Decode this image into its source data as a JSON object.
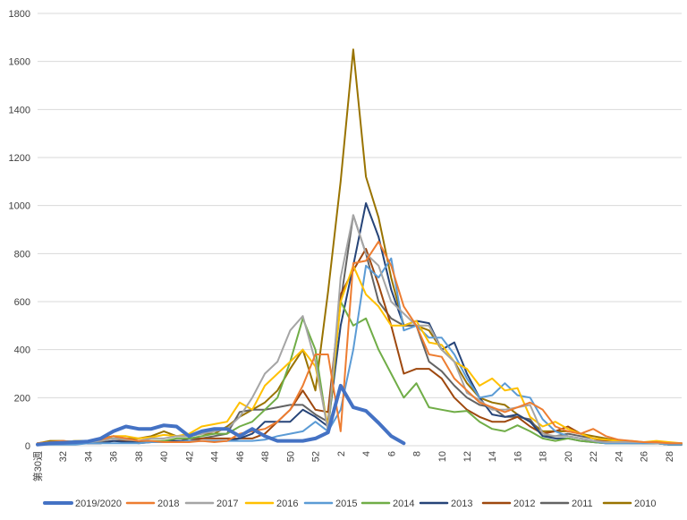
{
  "chart_data": {
    "type": "line",
    "title": "",
    "xlabel": "",
    "ylabel": "",
    "ylim": [
      0,
      1800
    ],
    "y_ticks": [
      0,
      200,
      400,
      600,
      800,
      1000,
      1200,
      1400,
      1600,
      1800
    ],
    "x_weeks": [
      30,
      31,
      32,
      33,
      34,
      35,
      36,
      37,
      38,
      39,
      40,
      41,
      42,
      43,
      44,
      45,
      46,
      47,
      48,
      49,
      50,
      51,
      52,
      1,
      2,
      3,
      4,
      5,
      6,
      7,
      8,
      9,
      10,
      11,
      12,
      13,
      14,
      15,
      16,
      17,
      18,
      19,
      20,
      21,
      22,
      23,
      24,
      25,
      26,
      27,
      28,
      29
    ],
    "x_tick_labels": [
      "第30週",
      "32",
      "34",
      "36",
      "38",
      "40",
      "42",
      "44",
      "46",
      "48",
      "50",
      "52",
      "2",
      "4",
      "6",
      "8",
      "10",
      "12",
      "14",
      "16",
      "18",
      "20",
      "22",
      "24",
      "26",
      "28"
    ],
    "grid": "horizontal",
    "legend_position": "bottom",
    "series": [
      {
        "name": "2019/2020",
        "color": "#4472C4",
        "width": 4,
        "values": [
          5,
          10,
          12,
          15,
          18,
          30,
          60,
          80,
          70,
          70,
          85,
          80,
          40,
          60,
          70,
          70,
          40,
          70,
          40,
          20,
          20,
          20,
          30,
          55,
          250,
          160,
          145,
          95,
          40,
          10
        ]
      },
      {
        "name": "2018",
        "color": "#ED7D31",
        "width": 2,
        "values": [
          10,
          15,
          20,
          15,
          20,
          25,
          40,
          30,
          20,
          20,
          15,
          15,
          15,
          20,
          15,
          20,
          50,
          60,
          70,
          100,
          150,
          250,
          380,
          380,
          60,
          760,
          770,
          850,
          750,
          580,
          500,
          380,
          370,
          280,
          230,
          180,
          160,
          140,
          160,
          180,
          150,
          80,
          60,
          50,
          70,
          40,
          25,
          20,
          15,
          15,
          10,
          10
        ]
      },
      {
        "name": "2017",
        "color": "#A5A5A5",
        "width": 2,
        "values": [
          10,
          10,
          15,
          20,
          15,
          20,
          30,
          25,
          20,
          30,
          30,
          40,
          40,
          50,
          60,
          70,
          120,
          200,
          300,
          350,
          480,
          540,
          350,
          60,
          700,
          960,
          800,
          750,
          600,
          550,
          500,
          500,
          400,
          350,
          220,
          190,
          150,
          150,
          160,
          170,
          50,
          40,
          40,
          30,
          20,
          15,
          15,
          15,
          15,
          10,
          10,
          10
        ]
      },
      {
        "name": "2016",
        "color": "#FFC000",
        "width": 2,
        "values": [
          10,
          15,
          15,
          20,
          20,
          25,
          40,
          40,
          30,
          35,
          45,
          40,
          50,
          80,
          90,
          100,
          180,
          150,
          250,
          300,
          350,
          400,
          330,
          80,
          600,
          750,
          630,
          580,
          500,
          500,
          520,
          430,
          420,
          350,
          320,
          250,
          280,
          230,
          240,
          120,
          80,
          100,
          70,
          50,
          30,
          25,
          20,
          20,
          15,
          20,
          15,
          10
        ]
      },
      {
        "name": "2015",
        "color": "#5B9BD5",
        "width": 2,
        "values": [
          5,
          5,
          5,
          5,
          10,
          10,
          10,
          10,
          10,
          15,
          15,
          15,
          20,
          20,
          20,
          20,
          20,
          20,
          25,
          40,
          50,
          60,
          100,
          60,
          150,
          400,
          750,
          700,
          780,
          480,
          500,
          450,
          450,
          380,
          280,
          200,
          210,
          260,
          210,
          200,
          110,
          60,
          40,
          30,
          20,
          10,
          10,
          10,
          10,
          10,
          5,
          5
        ]
      },
      {
        "name": "2014",
        "color": "#70AD47",
        "width": 2,
        "values": [
          10,
          15,
          15,
          20,
          20,
          25,
          30,
          30,
          20,
          20,
          20,
          30,
          30,
          40,
          50,
          50,
          80,
          100,
          150,
          200,
          350,
          530,
          400,
          60,
          600,
          500,
          530,
          400,
          300,
          200,
          260,
          160,
          150,
          140,
          145,
          100,
          70,
          60,
          85,
          60,
          30,
          20,
          30,
          20,
          15,
          10,
          10,
          10,
          10,
          10,
          5,
          5
        ]
      },
      {
        "name": "2013",
        "color": "#264478",
        "width": 2,
        "values": [
          10,
          10,
          10,
          10,
          10,
          10,
          20,
          15,
          15,
          15,
          20,
          20,
          20,
          20,
          20,
          20,
          30,
          50,
          100,
          100,
          100,
          150,
          120,
          80,
          500,
          750,
          1010,
          870,
          650,
          500,
          520,
          510,
          400,
          430,
          300,
          200,
          130,
          120,
          130,
          100,
          40,
          30,
          30,
          20,
          15,
          10,
          10,
          10,
          10,
          10,
          5,
          5
        ]
      },
      {
        "name": "2012",
        "color": "#9E480E",
        "width": 2,
        "values": [
          10,
          10,
          10,
          10,
          10,
          10,
          20,
          20,
          10,
          15,
          20,
          20,
          20,
          30,
          30,
          30,
          30,
          30,
          50,
          100,
          150,
          230,
          150,
          140,
          630,
          730,
          820,
          670,
          500,
          300,
          320,
          320,
          280,
          200,
          150,
          120,
          100,
          100,
          120,
          80,
          50,
          60,
          80,
          50,
          30,
          20,
          15,
          15,
          10,
          10,
          10,
          5
        ]
      },
      {
        "name": "2011",
        "color": "#636363",
        "width": 2,
        "values": [
          10,
          10,
          10,
          10,
          10,
          15,
          20,
          20,
          15,
          15,
          15,
          15,
          30,
          30,
          40,
          50,
          140,
          150,
          150,
          160,
          170,
          170,
          130,
          100,
          600,
          960,
          800,
          600,
          530,
          500,
          500,
          350,
          310,
          250,
          200,
          170,
          160,
          120,
          120,
          110,
          40,
          40,
          50,
          40,
          30,
          15,
          15,
          10,
          10,
          10,
          5,
          5
        ]
      },
      {
        "name": "2010",
        "color": "#997300",
        "width": 2,
        "values": [
          10,
          20,
          20,
          15,
          20,
          30,
          40,
          30,
          30,
          40,
          60,
          40,
          40,
          50,
          50,
          80,
          120,
          150,
          180,
          230,
          320,
          400,
          230,
          640,
          1100,
          1650,
          1120,
          950,
          700,
          500,
          500,
          480,
          400,
          350,
          260,
          200,
          180,
          170,
          130,
          100,
          60,
          60,
          60,
          50,
          40,
          30,
          20,
          15,
          10,
          10,
          10,
          10
        ]
      }
    ]
  }
}
